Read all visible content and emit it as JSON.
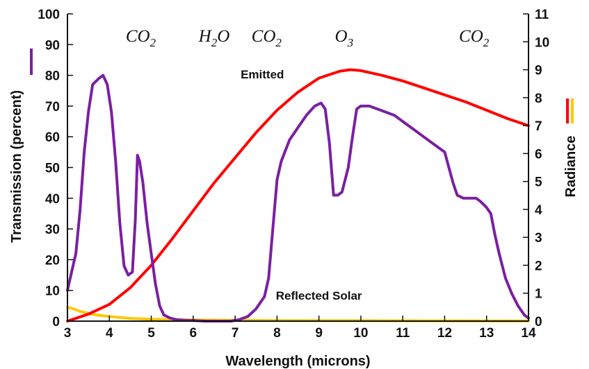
{
  "chart_data": {
    "type": "line",
    "xlabel": "Wavelength (microns)",
    "ylabel_left": "Transmission (percent)",
    "ylabel_right": "Radiance",
    "xlim": [
      3,
      14
    ],
    "ylim_left": [
      0,
      100
    ],
    "ylim_right": [
      0,
      11
    ],
    "x_ticks": [
      "3",
      "4",
      "5",
      "6",
      "7",
      "8",
      "9",
      "10",
      "11",
      "12",
      "13",
      "14"
    ],
    "y_left_ticks": [
      "0",
      "10",
      "20",
      "30",
      "40",
      "50",
      "60",
      "70",
      "80",
      "90",
      "100"
    ],
    "y_right_ticks": [
      "0",
      "1",
      "2",
      "3",
      "4",
      "5",
      "6",
      "7",
      "8",
      "9",
      "10",
      "11"
    ],
    "colors": {
      "transmission": "#7b1fa2",
      "emitted": "#ff0000",
      "reflected": "#ffc800",
      "axis": "#111111"
    },
    "annotations": [
      {
        "label": "Emitted",
        "x": 7.65,
        "y": 79
      },
      {
        "label": "Reflected Solar",
        "x": 9.0,
        "y": 7
      }
    ],
    "gas_labels": [
      {
        "base": "CO",
        "sub": "2",
        "x": 4.75
      },
      {
        "base": "H",
        "sub": "2",
        "tail": "O",
        "x": 6.5
      },
      {
        "base": "CO",
        "sub": "2",
        "x": 7.75
      },
      {
        "base": "O",
        "sub": "3",
        "x": 9.6
      },
      {
        "base": "CO",
        "sub": "2",
        "x": 12.7
      }
    ],
    "series": [
      {
        "id": "transmission",
        "axis": "left",
        "x": [
          3.0,
          3.1,
          3.2,
          3.3,
          3.4,
          3.5,
          3.6,
          3.75,
          3.85,
          3.95,
          4.05,
          4.15,
          4.25,
          4.35,
          4.45,
          4.55,
          4.62,
          4.67,
          4.72,
          4.8,
          4.9,
          5.0,
          5.1,
          5.2,
          5.3,
          5.45,
          5.6,
          5.8,
          6.0,
          6.3,
          6.6,
          6.9,
          7.1,
          7.3,
          7.5,
          7.7,
          7.8,
          7.9,
          8.0,
          8.1,
          8.3,
          8.5,
          8.7,
          8.9,
          9.05,
          9.15,
          9.25,
          9.35,
          9.45,
          9.55,
          9.7,
          9.8,
          9.9,
          10.0,
          10.1,
          10.2,
          10.4,
          10.6,
          10.8,
          11.0,
          11.2,
          11.4,
          11.6,
          11.8,
          12.0,
          12.2,
          12.3,
          12.45,
          12.6,
          12.75,
          12.85,
          13.0,
          13.1,
          13.2,
          13.3,
          13.45,
          13.6,
          13.75,
          13.9,
          14.0
        ],
        "y": [
          10,
          16,
          22,
          36,
          55,
          68,
          77,
          79,
          80,
          77,
          68,
          52,
          32,
          18,
          15,
          16,
          33,
          54,
          52,
          45,
          32,
          22,
          12,
          5,
          2,
          1,
          0.5,
          0.3,
          0.2,
          0,
          0,
          0,
          0.5,
          1.5,
          4,
          8,
          14,
          30,
          46,
          52,
          59,
          63,
          67,
          70,
          71,
          69,
          58,
          41,
          41,
          42,
          50,
          60,
          69,
          70,
          70,
          70,
          69,
          68,
          67,
          65,
          63,
          61,
          59,
          57,
          55,
          45,
          41,
          40,
          40,
          40,
          39,
          37,
          35,
          28,
          22,
          14,
          9,
          5,
          2,
          1
        ]
      },
      {
        "id": "emitted",
        "axis": "right",
        "x": [
          3.0,
          3.5,
          4.0,
          4.5,
          5.0,
          5.5,
          6.0,
          6.5,
          7.0,
          7.5,
          8.0,
          8.5,
          9.0,
          9.5,
          9.75,
          10.0,
          10.5,
          11.0,
          11.5,
          12.0,
          12.5,
          13.0,
          13.5,
          14.0
        ],
        "y": [
          0,
          0.25,
          0.6,
          1.2,
          2.0,
          2.95,
          3.95,
          4.95,
          5.85,
          6.75,
          7.55,
          8.2,
          8.7,
          8.95,
          9.0,
          8.97,
          8.8,
          8.6,
          8.35,
          8.1,
          7.85,
          7.55,
          7.25,
          7.0
        ]
      },
      {
        "id": "reflected",
        "axis": "left",
        "x": [
          3.0,
          3.1,
          3.3,
          3.6,
          4.0,
          4.5,
          5.0,
          5.5,
          6.0,
          7.0,
          8.0,
          10.0,
          12.0,
          14.0
        ],
        "y": [
          4.5,
          4.2,
          3.2,
          2.2,
          1.5,
          0.9,
          0.6,
          0.5,
          0.4,
          0.3,
          0.2,
          0.15,
          0.1,
          0.05
        ]
      }
    ]
  }
}
